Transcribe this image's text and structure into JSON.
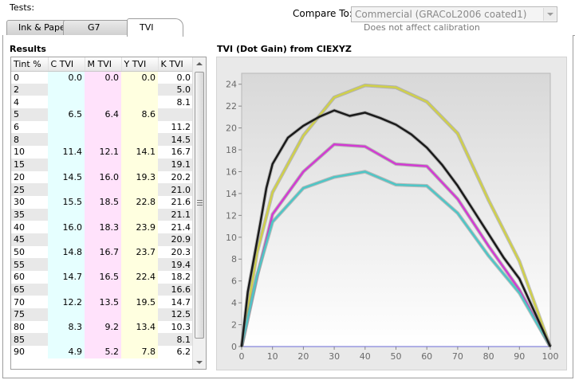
{
  "header": {
    "tests_label": "Tests:",
    "compare_label": "Compare To:",
    "compare_value": "Commercial (GRACoL2006 coated1)",
    "compare_note": "Does not affect calibration"
  },
  "tabs": [
    {
      "label": "Ink & Paper",
      "active": false
    },
    {
      "label": "G7",
      "active": false
    },
    {
      "label": "TVI",
      "active": true
    }
  ],
  "results": {
    "title": "Results",
    "columns": [
      "Tint %",
      "C TVI",
      "M TVI",
      "Y TVI",
      "K TVI"
    ],
    "rows": [
      [
        "0",
        "0.0",
        "0.0",
        "0.0",
        "0.0"
      ],
      [
        "2",
        "",
        "",
        "",
        "5.0"
      ],
      [
        "4",
        "",
        "",
        "",
        "8.1"
      ],
      [
        "5",
        "6.5",
        "6.4",
        "8.6",
        ""
      ],
      [
        "6",
        "",
        "",
        "",
        "11.2"
      ],
      [
        "8",
        "",
        "",
        "",
        "14.5"
      ],
      [
        "10",
        "11.4",
        "12.1",
        "14.1",
        "16.7"
      ],
      [
        "15",
        "",
        "",
        "",
        "19.1"
      ],
      [
        "20",
        "14.5",
        "16.0",
        "19.3",
        "20.2"
      ],
      [
        "25",
        "",
        "",
        "",
        "21.0"
      ],
      [
        "30",
        "15.5",
        "18.5",
        "22.8",
        "21.6"
      ],
      [
        "35",
        "",
        "",
        "",
        "21.1"
      ],
      [
        "40",
        "16.0",
        "18.3",
        "23.9",
        "21.4"
      ],
      [
        "45",
        "",
        "",
        "",
        "20.9"
      ],
      [
        "50",
        "14.8",
        "16.7",
        "23.7",
        "20.3"
      ],
      [
        "55",
        "",
        "",
        "",
        "19.4"
      ],
      [
        "60",
        "14.7",
        "16.5",
        "22.4",
        "18.2"
      ],
      [
        "65",
        "",
        "",
        "",
        "16.6"
      ],
      [
        "70",
        "12.2",
        "13.5",
        "19.5",
        "14.7"
      ],
      [
        "75",
        "",
        "",
        "",
        "12.5"
      ],
      [
        "80",
        "8.3",
        "9.2",
        "13.4",
        "10.3"
      ],
      [
        "85",
        "",
        "",
        "",
        "8.1"
      ],
      [
        "90",
        "4.9",
        "5.2",
        "7.8",
        "6.2"
      ]
    ]
  },
  "chart_data": {
    "type": "line",
    "title": "TVI (Dot Gain) from CIEXYZ",
    "xlabel": "",
    "ylabel": "",
    "xlim": [
      0,
      100
    ],
    "ylim": [
      0,
      25
    ],
    "xticks": [
      "0",
      "10",
      "20",
      "30",
      "40",
      "50",
      "60",
      "70",
      "80",
      "90",
      "100"
    ],
    "yticks": [
      "0",
      "2",
      "4",
      "6",
      "8",
      "10",
      "12",
      "14",
      "16",
      "18",
      "20",
      "22",
      "24"
    ],
    "grid": false,
    "series": [
      {
        "key": "yellow",
        "color": "#d0d04a",
        "x": [
          0,
          5,
          10,
          20,
          30,
          40,
          50,
          60,
          70,
          80,
          90,
          100
        ],
        "y": [
          0,
          8.6,
          14.1,
          19.3,
          22.8,
          23.9,
          23.7,
          22.4,
          19.5,
          13.4,
          7.8,
          0
        ]
      },
      {
        "key": "magenta",
        "color": "#d23ad2",
        "x": [
          0,
          5,
          10,
          20,
          30,
          40,
          50,
          60,
          70,
          80,
          90,
          100
        ],
        "y": [
          0,
          6.4,
          12.1,
          16.0,
          18.5,
          18.3,
          16.7,
          16.5,
          13.5,
          9.2,
          5.2,
          0
        ]
      },
      {
        "key": "cyan",
        "color": "#4ec6c6",
        "x": [
          0,
          5,
          10,
          20,
          30,
          40,
          50,
          60,
          70,
          80,
          90,
          100
        ],
        "y": [
          0,
          6.5,
          11.4,
          14.5,
          15.5,
          16.0,
          14.8,
          14.7,
          12.2,
          8.3,
          4.9,
          0
        ]
      },
      {
        "key": "black",
        "color": "#1a1a1a",
        "x": [
          0,
          2,
          4,
          6,
          8,
          10,
          15,
          20,
          25,
          30,
          35,
          40,
          45,
          50,
          55,
          60,
          65,
          70,
          75,
          80,
          85,
          90,
          100
        ],
        "y": [
          0,
          5.0,
          8.1,
          11.2,
          14.5,
          16.7,
          19.1,
          20.2,
          21.0,
          21.6,
          21.1,
          21.4,
          20.9,
          20.3,
          19.4,
          18.2,
          16.6,
          14.7,
          12.5,
          10.3,
          8.1,
          6.2,
          0
        ]
      }
    ]
  }
}
